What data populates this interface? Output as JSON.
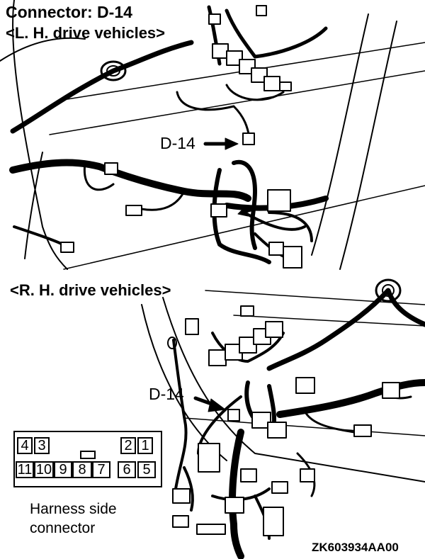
{
  "title": "Connector: D-14",
  "lh_label": "<L. H. drive vehicles>",
  "rh_label": "<R. H. drive vehicles>",
  "callout_lh": "D-14",
  "callout_rh": "D-14",
  "connector": {
    "top_pins": [
      "4",
      "3",
      "2",
      "1"
    ],
    "bottom_pins": [
      "11",
      "10",
      "9",
      "8",
      "7",
      "6",
      "5"
    ],
    "caption_line1": "Harness side",
    "caption_line2": "connector"
  },
  "figure_code": "ZK603934AA00"
}
